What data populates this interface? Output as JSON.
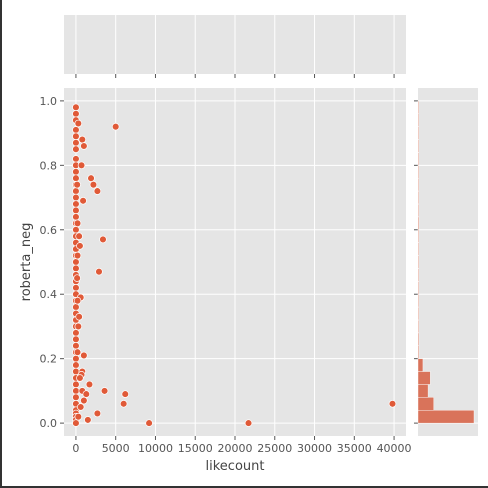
{
  "chart_data": {
    "type": "scatter",
    "style": "jointplot with marginal histograms",
    "xlabel": "likecount",
    "ylabel": "roberta_neg",
    "xlim": [
      -1500,
      41500
    ],
    "ylim": [
      -0.04,
      1.04
    ],
    "x_ticks": [
      0,
      5000,
      10000,
      15000,
      20000,
      25000,
      30000,
      35000,
      40000
    ],
    "y_ticks": [
      0.0,
      0.2,
      0.4,
      0.6,
      0.8,
      1.0
    ],
    "x_tick_labels": [
      "0",
      "5000",
      "10000",
      "15000",
      "20000",
      "25000",
      "30000",
      "35000",
      "40000"
    ],
    "y_tick_labels": [
      "0.0",
      "0.2",
      "0.4",
      "0.6",
      "0.8",
      "1.0"
    ],
    "grid": true,
    "colors": {
      "background": "#e5e5e5",
      "grid": "#ffffff",
      "marker": "#e05a38",
      "marker_edge": "#ffffff",
      "hist_bar": "#d9735a"
    },
    "points": [
      [
        5000,
        0.92
      ],
      [
        1900,
        0.76
      ],
      [
        2200,
        0.74
      ],
      [
        2700,
        0.72
      ],
      [
        900,
        0.69
      ],
      [
        3400,
        0.57
      ],
      [
        2900,
        0.47
      ],
      [
        800,
        0.88
      ],
      [
        1000,
        0.86
      ],
      [
        700,
        0.8
      ],
      [
        400,
        0.58
      ],
      [
        500,
        0.55
      ],
      [
        300,
        0.93
      ],
      [
        600,
        0.39
      ],
      [
        400,
        0.33
      ],
      [
        300,
        0.3
      ],
      [
        1000,
        0.21
      ],
      [
        200,
        0.22
      ],
      [
        800,
        0.16
      ],
      [
        700,
        0.15
      ],
      [
        1700,
        0.12
      ],
      [
        800,
        0.1
      ],
      [
        1300,
        0.09
      ],
      [
        1000,
        0.07
      ],
      [
        600,
        0.05
      ],
      [
        3600,
        0.1
      ],
      [
        6200,
        0.09
      ],
      [
        6000,
        0.06
      ],
      [
        2700,
        0.03
      ],
      [
        1500,
        0.01
      ],
      [
        9200,
        0.0
      ],
      [
        21700,
        0.0
      ],
      [
        39800,
        0.06
      ],
      [
        300,
        0.02
      ],
      [
        500,
        0.14
      ],
      [
        200,
        0.38
      ],
      [
        150,
        0.45
      ],
      [
        200,
        0.62
      ],
      [
        150,
        0.74
      ],
      [
        200,
        0.52
      ]
    ],
    "x0_column": {
      "x": 0,
      "y": [
        0.98,
        0.96,
        0.94,
        0.91,
        0.89,
        0.87,
        0.85,
        0.82,
        0.8,
        0.78,
        0.76,
        0.74,
        0.72,
        0.7,
        0.68,
        0.66,
        0.64,
        0.62,
        0.6,
        0.58,
        0.56,
        0.54,
        0.52,
        0.5,
        0.48,
        0.46,
        0.44,
        0.42,
        0.4,
        0.38,
        0.36,
        0.34,
        0.32,
        0.3,
        0.28,
        0.26,
        0.24,
        0.22,
        0.2,
        0.18,
        0.16,
        0.14,
        0.12,
        0.1,
        0.08,
        0.06,
        0.04,
        0.03,
        0.02,
        0.01,
        0.0
      ]
    },
    "x_marginal": {
      "counts": []
    },
    "y_marginal": {
      "bin_edges": [
        0.0,
        0.04,
        0.08,
        0.12,
        0.16,
        0.2,
        0.24,
        0.28,
        0.32,
        0.36,
        0.4,
        0.44,
        0.48,
        0.52,
        0.56,
        0.6,
        0.64,
        0.68,
        0.72,
        0.76,
        0.8,
        0.84,
        0.88,
        0.92,
        0.96,
        1.0
      ],
      "counts": [
        250,
        70,
        45,
        55,
        22,
        4,
        4,
        2,
        3,
        2,
        1,
        2,
        1,
        2,
        2,
        4,
        1,
        1,
        2,
        1,
        3,
        1,
        2,
        2,
        3
      ]
    }
  }
}
